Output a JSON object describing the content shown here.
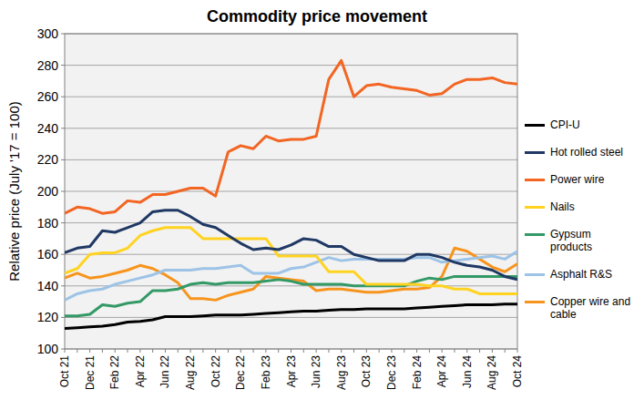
{
  "chart_data": {
    "type": "line",
    "title": "Commodity price movement",
    "y_label": "Relative price (July '17 = 100)",
    "categories": [
      "Oct 21",
      null,
      "Dec 21",
      null,
      "Feb 22",
      null,
      "Apr 22",
      null,
      "Jun 22",
      null,
      "Aug 22",
      null,
      "Oct 22",
      null,
      "Dec 22",
      null,
      "Feb 23",
      null,
      "Apr 23",
      null,
      "Jun 23",
      null,
      "Aug 23",
      null,
      "Oct 23",
      null,
      "Dec 23",
      null,
      "Feb 24",
      null,
      "Apr 24",
      null,
      "Jun 24",
      null,
      "Aug 24",
      null,
      "Oct 24"
    ],
    "series": [
      {
        "name": "CPI-U",
        "color": "#000000",
        "values": [
          113,
          113.5,
          114,
          114.5,
          115.5,
          117,
          117.5,
          118.5,
          120.5,
          120.5,
          120.5,
          121,
          121.5,
          121.5,
          121.5,
          122,
          122.5,
          123,
          123.5,
          124,
          124,
          124.5,
          125,
          125,
          125.5,
          125.5,
          125.5,
          125.5,
          126,
          126.5,
          127,
          127.5,
          128,
          128,
          128,
          128.5,
          128.5
        ]
      },
      {
        "name": "Hot rolled steel",
        "color": "#1f3864",
        "values": [
          161,
          164,
          165,
          175,
          174,
          177,
          180,
          187,
          188,
          188,
          184,
          179,
          177,
          172,
          167,
          163,
          164,
          163,
          166,
          170,
          169,
          165,
          165,
          160,
          158,
          156,
          156,
          156,
          160,
          160,
          158,
          155,
          153,
          152,
          150,
          146,
          144
        ]
      },
      {
        "name": "Power wire",
        "color": "#f26522",
        "values": [
          186,
          190,
          189,
          186,
          187,
          194,
          193,
          198,
          198,
          200,
          202,
          202,
          197,
          225,
          229,
          227,
          235,
          232,
          233,
          233,
          235,
          271,
          283,
          260,
          267,
          268,
          266,
          265,
          264,
          261,
          262,
          268,
          271,
          271,
          272,
          269,
          268
        ]
      },
      {
        "name": "Nails",
        "color": "#ffd320",
        "values": [
          148,
          151,
          160,
          161,
          161,
          164,
          172,
          175,
          177,
          177,
          177,
          170,
          170,
          170,
          170,
          170,
          170,
          159,
          159,
          159,
          159,
          149,
          149,
          149,
          141,
          141,
          141,
          141,
          141,
          140,
          140,
          138,
          138,
          135,
          135,
          135,
          135
        ]
      },
      {
        "name": "Gypsum products",
        "color": "#339966",
        "values": [
          121,
          121,
          122,
          128,
          127,
          129,
          130,
          137,
          137,
          138,
          141,
          142,
          141,
          142,
          142,
          142,
          143,
          144,
          143,
          141,
          141,
          141,
          141,
          140,
          140,
          140,
          140,
          140,
          143,
          145,
          144,
          146,
          146,
          146,
          146,
          146,
          146
        ]
      },
      {
        "name": "Asphalt R&S",
        "color": "#9dc3e6",
        "values": [
          131,
          135,
          137,
          138,
          141,
          143,
          145,
          147,
          150,
          150,
          150,
          151,
          151,
          152,
          153,
          148,
          148,
          148,
          151,
          152,
          155,
          158,
          156,
          157,
          157,
          157,
          157,
          157,
          158,
          158,
          155,
          156,
          157,
          158,
          159,
          157,
          162
        ]
      },
      {
        "name": "Copper wire and cable",
        "color": "#f7941d",
        "values": [
          145,
          148,
          145,
          146,
          148,
          150,
          153,
          151,
          147,
          142,
          132,
          132,
          131,
          134,
          136,
          138,
          146,
          145,
          144,
          143,
          137,
          138,
          138,
          137,
          136,
          136,
          137,
          138,
          138,
          139,
          146,
          164,
          162,
          157,
          152,
          149,
          154
        ]
      }
    ],
    "ylim": [
      100,
      300
    ],
    "yticks": [
      100,
      120,
      140,
      160,
      180,
      200,
      220,
      240,
      260,
      280,
      300
    ],
    "grid": true,
    "legend": "right"
  }
}
